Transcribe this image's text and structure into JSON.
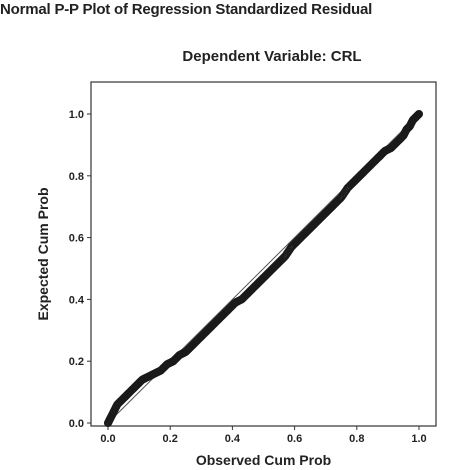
{
  "chart_data": {
    "type": "scatter",
    "title": "Normal P-P Plot of Regression Standardized Residual",
    "subtitle": "Dependent Variable: CRL",
    "xlabel": "Observed Cum Prob",
    "ylabel": "Expected Cum Prob",
    "xlim": [
      0.0,
      1.0
    ],
    "ylim": [
      0.0,
      1.0
    ],
    "xticks": [
      "0.0",
      "0.2",
      "0.4",
      "0.6",
      "0.8",
      "1.0"
    ],
    "yticks": [
      "0.0",
      "0.2",
      "0.4",
      "0.6",
      "0.8",
      "1.0"
    ],
    "reference_line": [
      [
        0.0,
        0.0
      ],
      [
        1.0,
        1.0
      ]
    ],
    "points": [
      [
        0.0,
        0.0
      ],
      [
        0.01,
        0.02
      ],
      [
        0.02,
        0.04
      ],
      [
        0.03,
        0.06
      ],
      [
        0.05,
        0.08
      ],
      [
        0.07,
        0.1
      ],
      [
        0.09,
        0.12
      ],
      [
        0.11,
        0.14
      ],
      [
        0.13,
        0.15
      ],
      [
        0.15,
        0.16
      ],
      [
        0.17,
        0.17
      ],
      [
        0.19,
        0.19
      ],
      [
        0.21,
        0.2
      ],
      [
        0.23,
        0.22
      ],
      [
        0.25,
        0.23
      ],
      [
        0.27,
        0.25
      ],
      [
        0.29,
        0.27
      ],
      [
        0.31,
        0.29
      ],
      [
        0.33,
        0.31
      ],
      [
        0.35,
        0.33
      ],
      [
        0.37,
        0.35
      ],
      [
        0.39,
        0.37
      ],
      [
        0.41,
        0.39
      ],
      [
        0.43,
        0.4
      ],
      [
        0.45,
        0.42
      ],
      [
        0.47,
        0.44
      ],
      [
        0.49,
        0.46
      ],
      [
        0.51,
        0.48
      ],
      [
        0.53,
        0.5
      ],
      [
        0.55,
        0.52
      ],
      [
        0.57,
        0.54
      ],
      [
        0.59,
        0.57
      ],
      [
        0.61,
        0.59
      ],
      [
        0.63,
        0.61
      ],
      [
        0.65,
        0.63
      ],
      [
        0.67,
        0.65
      ],
      [
        0.69,
        0.67
      ],
      [
        0.71,
        0.69
      ],
      [
        0.73,
        0.71
      ],
      [
        0.75,
        0.73
      ],
      [
        0.77,
        0.76
      ],
      [
        0.79,
        0.78
      ],
      [
        0.81,
        0.8
      ],
      [
        0.83,
        0.82
      ],
      [
        0.85,
        0.84
      ],
      [
        0.87,
        0.86
      ],
      [
        0.89,
        0.88
      ],
      [
        0.91,
        0.89
      ],
      [
        0.93,
        0.91
      ],
      [
        0.95,
        0.93
      ],
      [
        0.96,
        0.95
      ],
      [
        0.97,
        0.96
      ],
      [
        0.98,
        0.98
      ],
      [
        0.99,
        0.99
      ],
      [
        1.0,
        1.0
      ]
    ],
    "grid": false,
    "legend": "none"
  },
  "colors": {
    "point_stroke": "#1a1a1a",
    "reference_line": "#555555",
    "frame": "#333333",
    "background": "#ffffff"
  }
}
